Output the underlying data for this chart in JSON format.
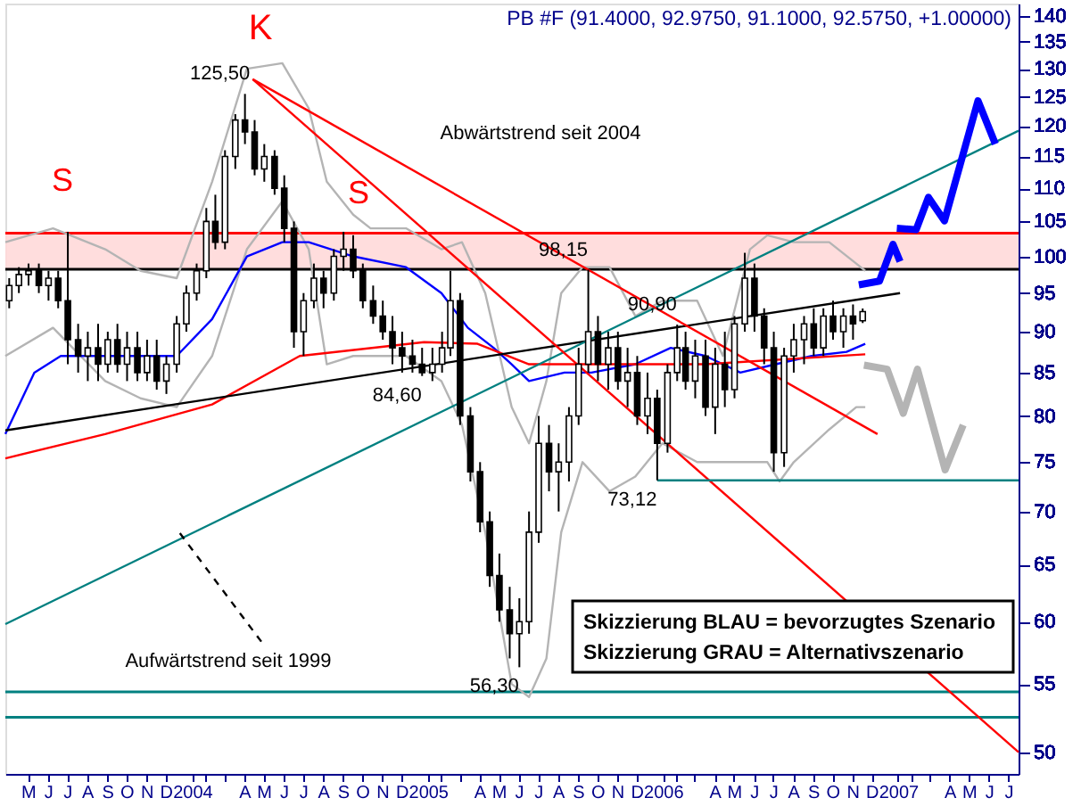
{
  "chart_data": {
    "type": "candlestick",
    "title": "PB #F (91.4000, 92.9750, 91.1000, 92.5750, +1.00000)",
    "color": "#000000",
    "x": [
      "2003-04-16",
      "2003-05-01",
      "2003-05-16",
      "2003-06-01",
      "2003-06-16",
      "2003-07-01",
      "2003-07-16",
      "2003-08-01",
      "2003-08-16",
      "2003-09-01",
      "2003-09-16",
      "2003-10-01",
      "2003-10-16",
      "2003-11-01",
      "2003-11-16",
      "2003-12-01",
      "2003-12-16",
      "2004-01-01",
      "2004-01-16",
      "2004-02-01",
      "2004-02-16",
      "2004-03-01",
      "2004-03-16",
      "2004-04-01",
      "2004-04-16",
      "2004-05-01",
      "2004-05-16",
      "2004-06-01",
      "2004-06-16",
      "2004-07-01",
      "2004-07-16",
      "2004-08-01",
      "2004-08-16",
      "2004-09-01",
      "2004-09-16",
      "2004-10-01",
      "2004-10-16",
      "2004-11-01",
      "2004-11-16",
      "2004-12-01",
      "2004-12-16",
      "2005-01-01",
      "2005-01-16",
      "2005-02-01",
      "2005-02-16",
      "2005-03-01",
      "2005-03-16",
      "2005-04-01",
      "2005-04-16",
      "2005-05-01",
      "2005-05-16",
      "2005-06-01",
      "2005-06-16",
      "2005-07-01",
      "2005-07-16",
      "2005-08-01",
      "2005-08-16",
      "2005-09-01",
      "2005-09-16",
      "2005-10-01",
      "2005-10-16",
      "2005-11-01",
      "2005-11-16",
      "2005-12-01",
      "2005-12-16",
      "2006-01-01",
      "2006-01-16",
      "2006-02-01",
      "2006-02-16",
      "2006-03-01",
      "2006-03-16",
      "2006-04-01",
      "2006-04-16",
      "2006-05-01",
      "2006-05-16",
      "2006-06-01",
      "2006-06-16",
      "2006-07-01",
      "2006-07-16",
      "2006-08-01",
      "2006-08-16",
      "2006-09-01",
      "2006-09-16",
      "2006-10-01",
      "2006-10-16",
      "2006-11-01",
      "2006-11-16",
      "2006-12-01"
    ],
    "ohlc": [
      [
        94,
        97,
        93,
        96
      ],
      [
        96,
        98.5,
        95,
        97.5
      ],
      [
        97.5,
        99,
        96,
        98
      ],
      [
        98,
        99,
        95,
        96
      ],
      [
        96,
        98,
        94,
        97
      ],
      [
        97,
        98,
        93,
        94
      ],
      [
        94,
        103.5,
        86,
        89
      ],
      [
        89,
        91,
        85,
        87
      ],
      [
        87,
        90,
        84,
        88
      ],
      [
        88,
        91,
        84,
        86
      ],
      [
        86,
        90,
        85,
        89
      ],
      [
        89,
        91,
        85,
        86
      ],
      [
        86,
        90,
        84,
        88
      ],
      [
        88,
        90,
        84,
        85
      ],
      [
        85,
        89,
        84,
        87
      ],
      [
        87,
        89,
        83,
        84
      ],
      [
        84,
        87,
        82.5,
        86
      ],
      [
        86,
        92,
        85,
        91
      ],
      [
        91,
        96,
        90,
        95
      ],
      [
        95,
        99,
        94,
        98
      ],
      [
        98,
        107,
        97,
        105
      ],
      [
        105,
        109,
        101,
        102
      ],
      [
        102,
        116,
        101,
        115
      ],
      [
        115,
        122,
        113,
        121
      ],
      [
        121,
        125.5,
        117,
        119
      ],
      [
        119,
        121,
        112,
        113
      ],
      [
        113,
        117,
        111,
        115
      ],
      [
        115,
        116,
        109,
        110
      ],
      [
        110,
        112,
        102,
        104
      ],
      [
        104,
        105,
        88,
        90
      ],
      [
        90,
        95,
        87,
        94
      ],
      [
        94,
        99,
        93,
        97
      ],
      [
        97,
        98,
        93,
        95
      ],
      [
        95,
        101,
        94,
        100
      ],
      [
        100,
        103.5,
        98,
        101
      ],
      [
        101,
        103,
        97,
        98
      ],
      [
        98,
        99,
        93,
        94
      ],
      [
        94,
        96,
        91,
        92
      ],
      [
        92,
        94,
        89,
        90
      ],
      [
        90,
        92,
        86,
        88
      ],
      [
        88,
        90,
        85,
        87
      ],
      [
        87,
        89,
        85,
        86
      ],
      [
        86,
        88,
        84.6,
        85
      ],
      [
        85,
        88,
        84,
        86
      ],
      [
        86,
        90,
        85,
        88
      ],
      [
        88,
        98,
        87,
        94
      ],
      [
        94,
        95,
        79,
        80
      ],
      [
        80,
        81,
        73,
        74
      ],
      [
        74,
        75,
        68,
        69
      ],
      [
        69,
        70,
        63,
        64
      ],
      [
        64,
        66,
        60,
        61
      ],
      [
        61,
        63,
        57,
        59
      ],
      [
        59,
        62,
        56.3,
        60
      ],
      [
        60,
        70,
        59,
        68
      ],
      [
        68,
        80,
        67,
        77
      ],
      [
        77,
        79,
        72,
        74
      ],
      [
        74,
        77,
        70,
        75
      ],
      [
        75,
        81,
        73,
        80
      ],
      [
        80,
        88,
        79,
        86
      ],
      [
        86,
        98.15,
        85,
        90
      ],
      [
        90,
        92,
        84,
        86
      ],
      [
        86,
        90,
        83,
        88
      ],
      [
        88,
        90,
        83,
        84
      ],
      [
        84,
        88,
        81,
        85
      ],
      [
        85,
        87,
        79,
        80
      ],
      [
        80,
        85,
        78,
        82
      ],
      [
        82,
        83,
        73.12,
        77
      ],
      [
        77,
        86,
        76,
        85
      ],
      [
        85,
        90.9,
        84,
        88
      ],
      [
        88,
        90,
        83,
        84
      ],
      [
        84,
        89,
        82,
        87
      ],
      [
        87,
        89,
        80,
        81
      ],
      [
        81,
        88,
        78,
        86
      ],
      [
        86,
        90,
        81,
        83
      ],
      [
        83,
        92,
        82,
        91
      ],
      [
        91,
        100.5,
        90,
        97
      ],
      [
        97,
        99,
        90,
        92
      ],
      [
        92,
        93,
        86,
        88
      ],
      [
        88,
        90,
        74,
        76
      ],
      [
        76,
        88,
        74.5,
        87
      ],
      [
        87,
        91,
        85,
        89
      ],
      [
        89,
        92,
        86,
        91
      ],
      [
        91,
        93,
        87,
        88
      ],
      [
        88,
        93,
        87,
        92
      ],
      [
        92,
        94,
        89,
        90
      ],
      [
        90,
        93,
        88,
        92
      ],
      [
        92,
        93.5,
        89,
        91
      ],
      [
        91.4,
        92.975,
        91.1,
        92.575
      ]
    ],
    "series": [
      {
        "type": "line",
        "color": "#b4b4b4",
        "x": [
          "2003-04-10",
          "2003-06-23",
          "2003-09-12",
          "2003-11-06",
          "2004-01-01",
          "2004-02-25",
          "2004-04-19",
          "2004-06-13",
          "2004-07-24",
          "2004-08-21",
          "2004-10-01",
          "2004-10-28",
          "2004-12-22",
          "2005-02-15",
          "2005-03-19",
          "2005-04-24",
          "2005-06-04",
          "2005-07-01",
          "2005-07-28",
          "2005-08-20",
          "2005-09-22",
          "2005-11-03",
          "2005-12-13",
          "2006-01-24",
          "2006-03-19",
          "2006-04-28",
          "2006-06-09",
          "2006-07-06",
          "2006-08-16",
          "2006-10-10",
          "2006-11-21",
          "2006-12-05"
        ],
        "values": [
          102,
          104,
          101,
          98,
          97,
          111,
          130,
          131,
          123,
          111,
          106,
          104,
          104,
          101,
          102,
          95,
          81,
          77,
          84,
          95,
          98.5,
          98.5,
          92,
          94,
          94,
          87,
          101,
          103,
          102,
          102,
          99,
          98
        ]
      },
      {
        "type": "line",
        "color": "#b4b4b4",
        "x": [
          "2003-04-10",
          "2003-06-23",
          "2003-09-12",
          "2003-11-06",
          "2004-01-01",
          "2004-02-25",
          "2004-04-19",
          "2004-06-13",
          "2004-07-24",
          "2004-08-21",
          "2004-10-01",
          "2004-12-22",
          "2005-02-15",
          "2005-03-19",
          "2005-04-24",
          "2005-06-04",
          "2005-07-01",
          "2005-07-28",
          "2005-08-20",
          "2005-09-22",
          "2005-11-03",
          "2005-12-13",
          "2006-01-24",
          "2006-03-19",
          "2006-04-28",
          "2006-06-09",
          "2006-07-06",
          "2006-07-25",
          "2006-08-16",
          "2006-10-10",
          "2006-11-21",
          "2006-12-05"
        ],
        "values": [
          87,
          90.5,
          84,
          82,
          81,
          87,
          101,
          108,
          101,
          86,
          87,
          87,
          84,
          79,
          68,
          55,
          54,
          57,
          68,
          75,
          72,
          73.5,
          77,
          75,
          75,
          75,
          75,
          73,
          75,
          78.5,
          81,
          81
        ]
      },
      {
        "type": "line",
        "color": "#0000ff",
        "x": [
          "2003-04-10",
          "2003-05-25",
          "2003-07-05",
          "2003-09-12",
          "2004-01-01",
          "2004-02-25",
          "2004-04-19",
          "2004-06-13",
          "2004-07-24",
          "2004-10-01",
          "2004-12-22",
          "2005-02-15",
          "2005-03-28",
          "2005-05-07",
          "2005-06-04",
          "2005-07-01",
          "2005-08-25",
          "2005-10-06",
          "2005-12-13",
          "2006-02-06",
          "2006-04-01",
          "2006-05-25",
          "2006-07-19",
          "2006-09-13",
          "2006-11-06",
          "2006-12-05"
        ],
        "values": [
          78,
          85,
          87,
          87,
          87,
          91.6,
          100,
          102,
          102,
          100,
          98.5,
          95,
          90.5,
          88,
          86,
          84,
          85,
          85,
          86,
          88,
          87,
          85,
          86,
          87,
          87.5,
          88.5
        ]
      },
      {
        "type": "line",
        "color": "#ff0000",
        "x": [
          "2003-04-10",
          "2003-09-12",
          "2004-02-25",
          "2004-07-10",
          "2005-01-19",
          "2005-04-12",
          "2005-07-01",
          "2006-04-01",
          "2006-12-05"
        ],
        "values": [
          75.4,
          78,
          81.3,
          87,
          88.7,
          88.5,
          86,
          86,
          87.2
        ]
      },
      {
        "type": "line",
        "color": "#000000",
        "x": [
          "2003-04-10",
          "2007-01-28"
        ],
        "values": [
          78.4,
          95
        ]
      },
      {
        "type": "line",
        "color": "#008080",
        "x": [
          "2003-04-10",
          "2007-07-31"
        ],
        "values": [
          59.8,
          119.2
        ]
      },
      {
        "type": "line",
        "color": "#ff0000",
        "x": [
          "2004-04-28",
          "2006-12-24"
        ],
        "values": [
          128.1,
          78
        ]
      },
      {
        "type": "line",
        "color": "#ff0000",
        "x": [
          "2004-04-28",
          "2007-07-31"
        ],
        "values": [
          128.1,
          50
        ]
      },
      {
        "type": "line",
        "color": "#008080",
        "x": [
          "2006-01-16",
          "2007-07-31"
        ],
        "values": [
          73.12,
          73.12
        ]
      },
      {
        "type": "line",
        "color": "#000000",
        "line_style": "dashed",
        "x": [
          "2004-01-06",
          "2004-05-15"
        ],
        "values": [
          67.9,
          58.1
        ]
      },
      {
        "type": "line",
        "color": "#0000ff",
        "x": [
          "2006-11-25",
          "2006-12-27",
          "2007-01-17",
          "2007-01-28"
        ],
        "values": [
          96.1,
          96.6,
          101.7,
          99.3
        ]
      },
      {
        "type": "line",
        "color": "#0000ff",
        "x": [
          "2007-01-23",
          "2007-02-22",
          "2007-03-13",
          "2007-04-07",
          "2007-05-29",
          "2007-06-25"
        ],
        "values": [
          104,
          103.8,
          108.6,
          105.1,
          124.3,
          117
        ]
      },
      {
        "type": "line",
        "color": "#b4b4b4",
        "x": [
          "2006-12-03",
          "2007-01-08",
          "2007-02-02",
          "2007-02-24",
          "2007-04-08",
          "2007-05-06"
        ],
        "values": [
          85.9,
          85.4,
          80.3,
          85.4,
          74.2,
          79
        ]
      }
    ],
    "ref_lines": [
      {
        "axis": "y",
        "value": 98.2,
        "color": "#000000"
      },
      {
        "axis": "y",
        "value": 103.3,
        "color": "#ff0000"
      },
      {
        "axis": "y",
        "value": 54.4,
        "color": "#008080"
      },
      {
        "axis": "y",
        "value": 52.5,
        "color": "#008080"
      }
    ],
    "bands": [
      {
        "axis": "y",
        "from": 98.2,
        "to": 103.3,
        "color": "#ffd9d9"
      }
    ],
    "annotations": [
      "K",
      "S",
      "S",
      "Abwärtstrend seit 2004",
      "Aufwärtstrend seit 1999",
      {
        "text": "125,50",
        "x": "2004-04-16",
        "y": 125.5
      },
      {
        "text": "98,15",
        "x": "2005-10-01",
        "y": 98.15
      },
      {
        "text": "90,90",
        "x": "2006-02-16",
        "y": 90.9
      },
      {
        "text": "84,60",
        "x": "2005-01-16",
        "y": 84.6
      },
      {
        "text": "73,12",
        "x": "2006-01-16",
        "y": 73.12
      },
      {
        "text": "56,30",
        "x": "2005-06-16",
        "y": 56.3
      },
      "Skizzierung BLAU = bevorzugtes Szenario",
      "Skizzierung GRAU = Alternativszenario"
    ],
    "log": "y",
    "grid": false,
    "xlim": [
      "2003-04-10",
      "2007-07-31"
    ],
    "ylim": [
      48.5,
      142.4
    ],
    "yticks": [
      50,
      55,
      60,
      65,
      70,
      75,
      80,
      85,
      90,
      95,
      100,
      105,
      110,
      115,
      120,
      125,
      130,
      135,
      140
    ],
    "xticks": [
      {
        "value": "2003-05-15",
        "label": "M"
      },
      {
        "value": "2003-06-15",
        "label": "J"
      },
      {
        "value": "2003-07-15",
        "label": "J"
      },
      {
        "value": "2003-08-15",
        "label": "A"
      },
      {
        "value": "2003-09-15",
        "label": "S"
      },
      {
        "value": "2003-10-15",
        "label": "O"
      },
      {
        "value": "2003-11-15",
        "label": "N"
      },
      {
        "value": "2003-12-15",
        "label": "D"
      },
      {
        "value": "2004-01-25",
        "label": "2004"
      },
      {
        "value": "2004-02-15",
        "label": null
      },
      {
        "value": "2004-03-15",
        "label": null
      },
      {
        "value": "2004-04-15",
        "label": "A"
      },
      {
        "value": "2004-05-15",
        "label": "M"
      },
      {
        "value": "2004-06-15",
        "label": "J"
      },
      {
        "value": "2004-07-15",
        "label": "J"
      },
      {
        "value": "2004-08-15",
        "label": "A"
      },
      {
        "value": "2004-09-15",
        "label": "S"
      },
      {
        "value": "2004-10-15",
        "label": "O"
      },
      {
        "value": "2004-11-15",
        "label": "N"
      },
      {
        "value": "2004-12-15",
        "label": "D"
      },
      {
        "value": "2005-01-25",
        "label": "2005"
      },
      {
        "value": "2005-02-15",
        "label": null
      },
      {
        "value": "2005-03-15",
        "label": null
      },
      {
        "value": "2005-04-15",
        "label": "A"
      },
      {
        "value": "2005-05-15",
        "label": "M"
      },
      {
        "value": "2005-06-15",
        "label": "J"
      },
      {
        "value": "2005-07-15",
        "label": "J"
      },
      {
        "value": "2005-08-15",
        "label": "A"
      },
      {
        "value": "2005-09-15",
        "label": "S"
      },
      {
        "value": "2005-10-15",
        "label": "O"
      },
      {
        "value": "2005-11-15",
        "label": "N"
      },
      {
        "value": "2005-12-15",
        "label": "D"
      },
      {
        "value": "2006-01-25",
        "label": "2006"
      },
      {
        "value": "2006-02-15",
        "label": null
      },
      {
        "value": "2006-03-15",
        "label": null
      },
      {
        "value": "2006-04-15",
        "label": "A"
      },
      {
        "value": "2006-05-15",
        "label": "M"
      },
      {
        "value": "2006-06-15",
        "label": "J"
      },
      {
        "value": "2006-07-15",
        "label": "J"
      },
      {
        "value": "2006-08-15",
        "label": "A"
      },
      {
        "value": "2006-09-15",
        "label": "S"
      },
      {
        "value": "2006-10-15",
        "label": "O"
      },
      {
        "value": "2006-11-15",
        "label": "N"
      },
      {
        "value": "2006-12-15",
        "label": "D"
      },
      {
        "value": "2007-01-25",
        "label": "2007"
      },
      {
        "value": "2007-02-15",
        "label": null
      },
      {
        "value": "2007-03-15",
        "label": null
      },
      {
        "value": "2007-04-15",
        "label": "A"
      },
      {
        "value": "2007-05-15",
        "label": "M"
      },
      {
        "value": "2007-06-15",
        "label": "J"
      },
      {
        "value": "2007-07-15",
        "label": "J"
      }
    ]
  }
}
